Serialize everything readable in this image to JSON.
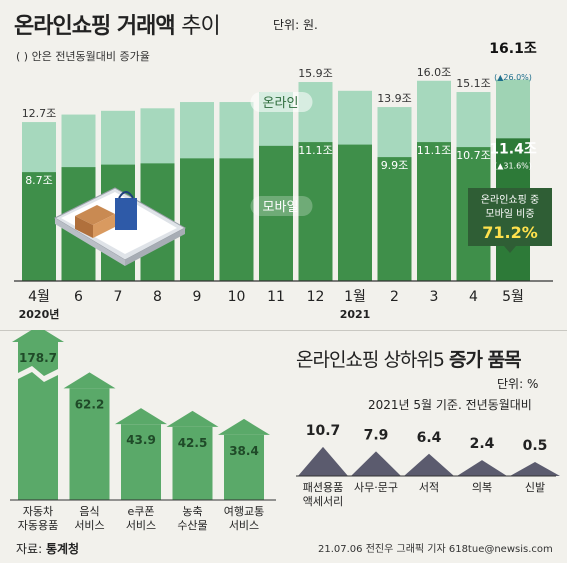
{
  "header": {
    "title": "온라인쇼핑 거래액",
    "title_suffix": "추이",
    "unit": "단위: 원.",
    "note": "( ) 안은 전년동월대비 증가율"
  },
  "chart_data": [
    {
      "type": "bar",
      "subtype": "stacked",
      "categories": [
        "4월",
        "6",
        "7",
        "8",
        "9",
        "10",
        "11",
        "12",
        "1월",
        "2",
        "3",
        "4",
        "5월"
      ],
      "year_labels": [
        {
          "category": "4월",
          "label": "2020년"
        },
        {
          "category": "1월",
          "label": "2021"
        }
      ],
      "series": [
        {
          "name": "모바일",
          "values": [
            8.7,
            9.1,
            9.3,
            9.4,
            9.8,
            9.8,
            10.8,
            11.1,
            10.9,
            9.9,
            11.1,
            10.7,
            11.4
          ]
        },
        {
          "name": "온라인",
          "values": [
            12.7,
            13.3,
            13.6,
            13.8,
            14.3,
            14.3,
            15.1,
            15.9,
            15.2,
            13.9,
            16.0,
            15.1,
            16.1
          ]
        }
      ],
      "total_labels": [
        "12.7조",
        "",
        "",
        "",
        "",
        "",
        "",
        "15.9조",
        "",
        "13.9조",
        "16.0조",
        "15.1조",
        "16.1조"
      ],
      "mobile_labels": [
        "8.7조",
        "",
        "",
        "",
        "",
        "",
        "",
        "11.1조",
        "",
        "9.9조",
        "11.1조",
        "10.7조",
        "11.4조"
      ],
      "growth": {
        "total": "(▲26.0%)",
        "mobile": "(▲31.6%)"
      },
      "callout": {
        "line1": "온라인쇼핑 중",
        "line2": "모바일 비중",
        "value": "71.2%"
      },
      "ylim": [
        0,
        17.5
      ],
      "colors": {
        "online": "#a6d8bd",
        "mobile": "#3f8f4a",
        "highlight_online": "#9fd3b4",
        "highlight_mobile": "#2d7a38",
        "callout": "#2f5e35",
        "callout_value": "#ffe14d",
        "growth": "#1d6e8c"
      }
    },
    {
      "type": "bar",
      "categories": [
        "자동차\n자동용품",
        "음식\n서비스",
        "e쿠폰\n서비스",
        "농축\n수산물",
        "여행교통\n서비스"
      ],
      "values": [
        178.7,
        62.2,
        43.9,
        42.5,
        38.4
      ],
      "value_labels": [
        "178.7",
        "62.2",
        "43.9",
        "42.5",
        "38.4"
      ],
      "axis_break": true,
      "color": "#5aa969",
      "subtitle": "증가 품목"
    },
    {
      "type": "bar",
      "categories": [
        "패션용품\n액세서리",
        "사무·문구",
        "서적",
        "의복",
        "신발"
      ],
      "values": [
        10.7,
        7.9,
        6.4,
        2.4,
        0.5
      ],
      "value_labels": [
        "10.7",
        "7.9",
        "6.4",
        "2.4",
        "0.5"
      ],
      "color": "#5b5b6e",
      "title": "온라인쇼핑 상하위5",
      "subtitle": "증가 품목",
      "unit": "단위: %",
      "basis": "2021년 5월 기준. 전년동월대비"
    }
  ],
  "footer": {
    "source_label": "자료:",
    "source_value": "통계청",
    "credit": "21.07.06 전진우 그래픽 기자 618tue@newsis.com"
  }
}
